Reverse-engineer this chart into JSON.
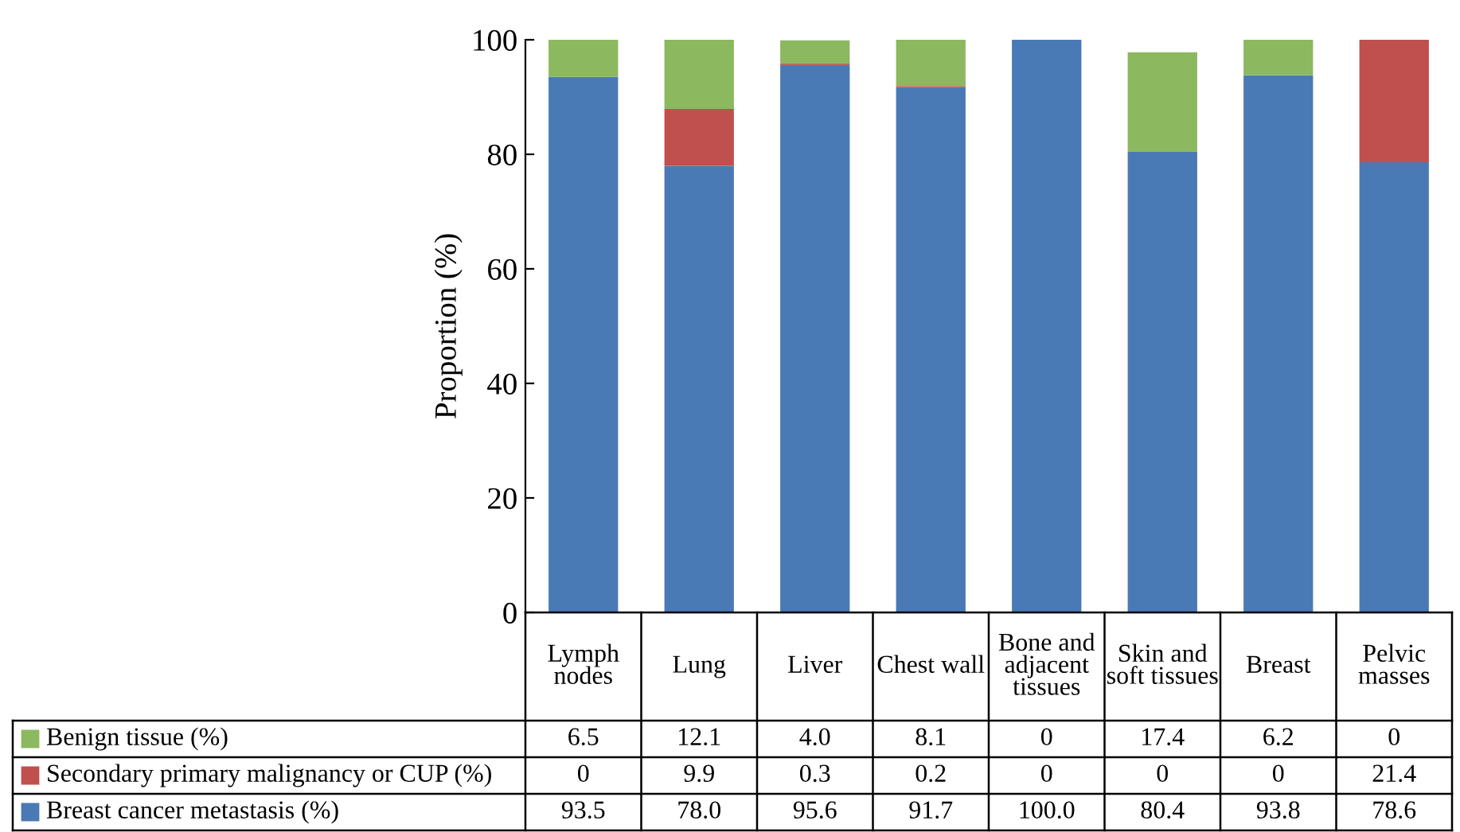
{
  "chart_data": {
    "type": "bar",
    "stacked": true,
    "ylabel": "Proportion (%)",
    "categories": [
      "Lymph\nnodes",
      "Lung",
      "Liver",
      "Chest wall",
      "Bone and\nadjacent\ntissues",
      "Skin and\nsoft tissues",
      "Breast",
      "Pelvic\nmasses"
    ],
    "series": [
      {
        "name": "Breast cancer metastasis (%)",
        "color": "#4a7ab5",
        "values": [
          93.5,
          78.0,
          95.6,
          91.7,
          100.0,
          80.4,
          93.8,
          78.6
        ],
        "value_labels": [
          "93.5",
          "78.0",
          "95.6",
          "91.7",
          "100.0",
          "80.4",
          "93.8",
          "78.6"
        ]
      },
      {
        "name": "Secondary primary malignancy or CUP (%)",
        "color": "#c0504d",
        "values": [
          0,
          9.9,
          0.3,
          0.2,
          0,
          0,
          0,
          21.4
        ],
        "value_labels": [
          "0",
          "9.9",
          "0.3",
          "0.2",
          "0",
          "0",
          "0",
          "21.4"
        ]
      },
      {
        "name": "Benign tissue (%)",
        "color": "#8cb860",
        "values": [
          6.5,
          12.1,
          4.0,
          8.1,
          0,
          17.4,
          6.2,
          0
        ],
        "value_labels": [
          "6.5",
          "12.1",
          "4.0",
          "8.1",
          "0",
          "17.4",
          "6.2",
          "0"
        ]
      }
    ],
    "ylim": [
      0,
      100
    ],
    "yticks": [
      0,
      20,
      40,
      60,
      80,
      100
    ],
    "grid": false,
    "legend": "bottom"
  }
}
